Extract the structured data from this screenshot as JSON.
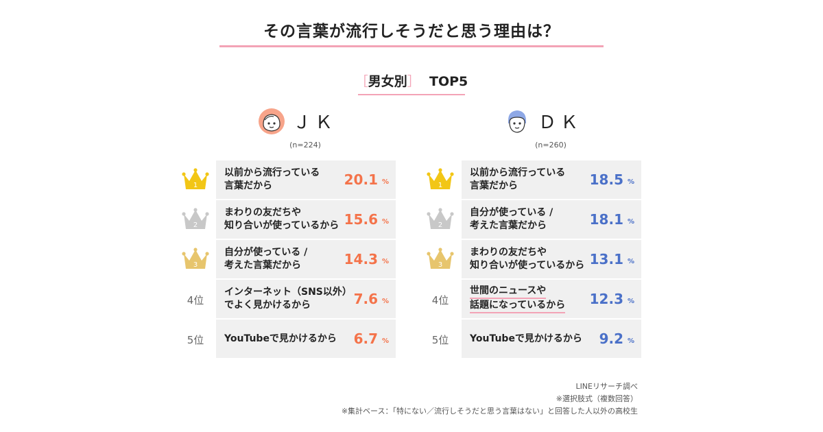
{
  "title": "その言葉が流行しそうだと思う理由は？",
  "subtitle": {
    "open": "［",
    "label": "男女別",
    "close": "］",
    "suffix": "TOP5"
  },
  "colors": {
    "jk_value": "#f4734a",
    "dk_value": "#4a70c8",
    "accent": "#f3a3b6",
    "gold": "#f2c616",
    "silver": "#c8c8c8",
    "bronze": "#e7c56d"
  },
  "rank_labels": [
    "1",
    "2",
    "3",
    "4位",
    "5位"
  ],
  "chart_data": {
    "type": "table",
    "groups": [
      {
        "name": "ＪＫ",
        "n": "(n=224)",
        "unit": "%",
        "rows": [
          {
            "rank": 1,
            "reason": [
              "以前から流行っている",
              "言葉だから"
            ],
            "value": "20.1"
          },
          {
            "rank": 2,
            "reason": [
              "まわりの友だちや",
              "知り合いが使っているから"
            ],
            "value": "15.6"
          },
          {
            "rank": 3,
            "reason": [
              "自分が使っている /",
              "考えた言葉だから"
            ],
            "value": "14.3"
          },
          {
            "rank": 4,
            "reason": [
              "インターネット（SNS以外）",
              "でよく見かけるから"
            ],
            "value": "7.6"
          },
          {
            "rank": 5,
            "reason": [
              "YouTubeで見かけるから"
            ],
            "value": "6.7"
          }
        ]
      },
      {
        "name": "ＤＫ",
        "n": "(n=260)",
        "unit": "%",
        "rows": [
          {
            "rank": 1,
            "reason": [
              "以前から流行っている",
              "言葉だから"
            ],
            "value": "18.5"
          },
          {
            "rank": 2,
            "reason": [
              "自分が使っている /",
              "考えた言葉だから"
            ],
            "value": "18.1"
          },
          {
            "rank": 3,
            "reason": [
              "まわりの友だちや",
              "知り合いが使っているから"
            ],
            "value": "13.1"
          },
          {
            "rank": 4,
            "reason": [
              "世間のニュースや",
              "話題になっているから"
            ],
            "value": "12.3",
            "underline": true
          },
          {
            "rank": 5,
            "reason": [
              "YouTubeで見かけるから"
            ],
            "value": "9.2"
          }
        ]
      }
    ]
  },
  "footnotes": [
    "LINEリサーチ調べ",
    "※選択肢式（複数回答）",
    "※集計ベース：「特にない／流行しそうだと思う言葉はない」と回答した人以外の高校生"
  ]
}
